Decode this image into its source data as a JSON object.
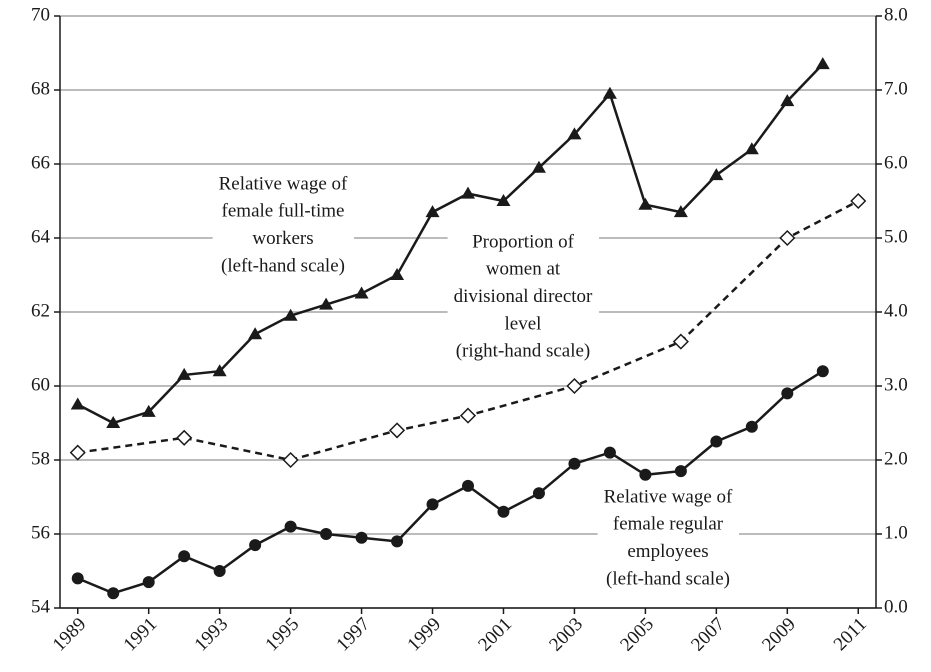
{
  "chart_data": {
    "type": "line",
    "x": [
      1989,
      1990,
      1991,
      1992,
      1993,
      1994,
      1995,
      1996,
      1997,
      1998,
      1999,
      2000,
      2001,
      2002,
      2003,
      2004,
      2005,
      2006,
      2007,
      2008,
      2009,
      2010,
      2011
    ],
    "xlim": [
      1988.5,
      2011.5
    ],
    "xticks": [
      1989,
      1991,
      1993,
      1995,
      1997,
      1999,
      2001,
      2003,
      2005,
      2007,
      2009,
      2011
    ],
    "ylim": [
      54,
      70
    ],
    "yticks": [
      54,
      56,
      58,
      60,
      62,
      64,
      66,
      68,
      70
    ],
    "y2lim": [
      0,
      8
    ],
    "y2ticks": [
      {
        "value": 0,
        "label": "0.0"
      },
      {
        "value": 1,
        "label": "1.0"
      },
      {
        "value": 2,
        "label": "2.0"
      },
      {
        "value": 3,
        "label": "3.0"
      },
      {
        "value": 4,
        "label": "4.0"
      },
      {
        "value": 5,
        "label": "5.0"
      },
      {
        "value": 6,
        "label": "6.0"
      },
      {
        "value": 7,
        "label": "7.0"
      },
      {
        "value": 8,
        "label": "8.0"
      }
    ],
    "grid": true,
    "series": [
      {
        "color": "#1a1a1a",
        "marker": "triangle",
        "dash": false,
        "values": [
          59.5,
          59.0,
          59.3,
          60.3,
          60.4,
          61.4,
          61.9,
          62.2,
          62.5,
          63.0,
          64.7,
          65.2,
          65.0,
          65.9,
          66.8,
          67.9,
          64.9,
          64.7,
          65.7,
          66.4,
          67.7,
          68.7,
          null
        ]
      },
      {
        "color": "#1a1a1a",
        "marker": "circle",
        "dash": false,
        "values": [
          54.8,
          54.4,
          54.7,
          55.4,
          55.0,
          55.7,
          56.2,
          56.0,
          55.9,
          55.8,
          56.8,
          57.3,
          56.6,
          57.1,
          57.9,
          58.2,
          57.6,
          57.7,
          58.5,
          58.9,
          59.8,
          60.4,
          null
        ]
      },
      {
        "color": "#1a1a1a",
        "marker": "diamond",
        "dash": true,
        "axis": "y2",
        "x": [
          1989,
          1992,
          1995,
          1998,
          2000,
          2003,
          2006,
          2009,
          2011
        ],
        "values": [
          2.1,
          2.3,
          2.0,
          2.4,
          2.6,
          3.0,
          3.6,
          5.0,
          5.5
        ]
      }
    ],
    "annotations": [
      [
        "Relative wage of",
        "female full-time",
        "workers",
        "(left-hand scale)"
      ],
      [
        "Proportion of",
        "women at",
        "divisional director",
        "level",
        "(right-hand scale)"
      ],
      [
        "Relative wage of",
        "female regular",
        "employees",
        "(left-hand scale)"
      ]
    ]
  }
}
